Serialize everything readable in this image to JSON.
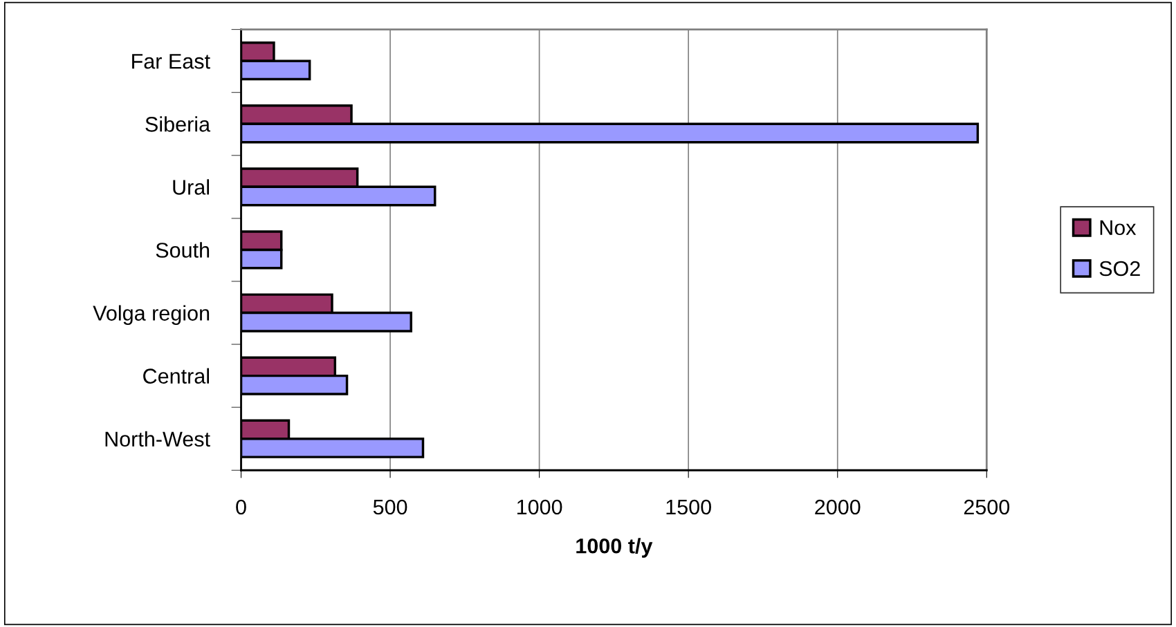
{
  "chart_data": {
    "type": "bar",
    "orientation": "horizontal",
    "xlabel": "1000 t/y",
    "categories": [
      "Far East",
      "Siberia",
      "Ural",
      "South",
      "Volga region",
      "Central",
      "North-West"
    ],
    "series": [
      {
        "name": "Nox",
        "color": "#993366",
        "values": [
          110,
          370,
          390,
          135,
          305,
          315,
          160
        ]
      },
      {
        "name": "SO2",
        "color": "#9999ff",
        "values": [
          230,
          2470,
          650,
          135,
          570,
          355,
          610
        ]
      }
    ],
    "xlim": [
      0,
      2500
    ],
    "xticks": [
      0,
      500,
      1000,
      1500,
      2000,
      2500
    ],
    "grid": "x",
    "legend": "right"
  }
}
